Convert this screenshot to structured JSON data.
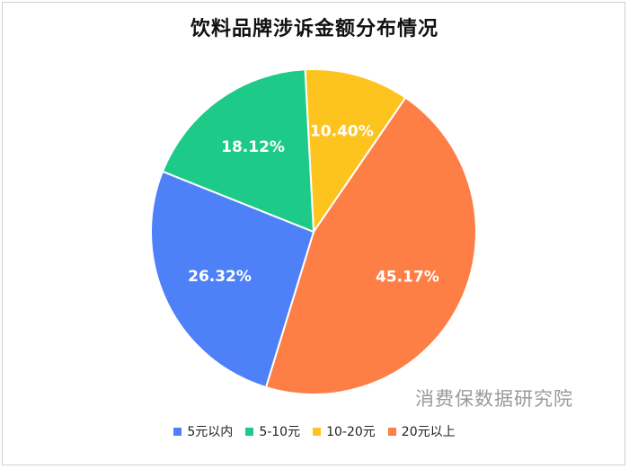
{
  "chart_data": {
    "type": "pie",
    "title": "饮料品牌涉诉金额分布情况",
    "categories": [
      "5元以内",
      "5-10元",
      "10-20元",
      "20元以上"
    ],
    "values": [
      26.32,
      18.12,
      10.4,
      45.17
    ],
    "labels": [
      "26.32%",
      "18.12%",
      "10.40%",
      "45.17%"
    ],
    "colors": [
      "#4e81f8",
      "#1dca87",
      "#fdc41f",
      "#fd7f45"
    ],
    "legend_position": "bottom"
  },
  "watermark": "消费保数据研究院"
}
